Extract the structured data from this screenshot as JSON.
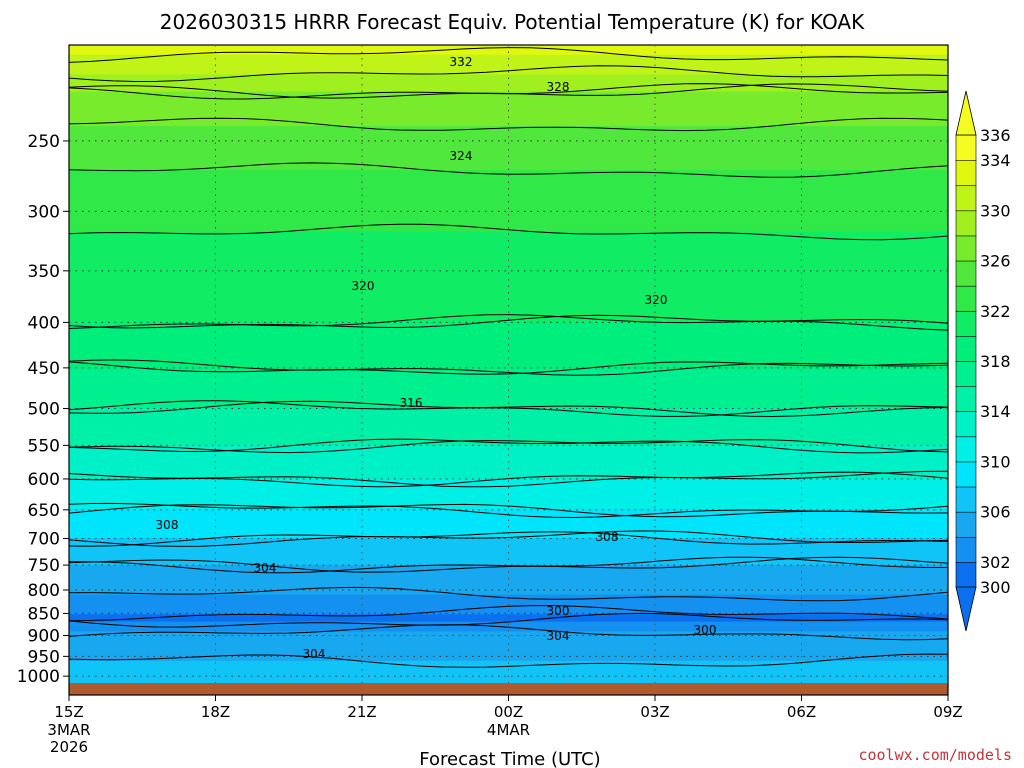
{
  "chart_data": {
    "type": "filled_contour",
    "title": "2026030315 HRRR Forecast Equiv. Potential Temperature (K) for KOAK",
    "xlabel": "Forecast Time (UTC)",
    "y_ticks": [
      250,
      300,
      350,
      400,
      450,
      500,
      550,
      600,
      650,
      700,
      750,
      800,
      850,
      900,
      950,
      1000
    ],
    "y_axis": "log pressure, 1000 at bottom",
    "x_ticks": [
      {
        "label": "15Z",
        "sub": [
          "3MAR",
          "2026"
        ]
      },
      {
        "label": "18Z",
        "sub": []
      },
      {
        "label": "21Z",
        "sub": []
      },
      {
        "label": "00Z",
        "sub": [
          "4MAR"
        ]
      },
      {
        "label": "03Z",
        "sub": []
      },
      {
        "label": "06Z",
        "sub": []
      },
      {
        "label": "09Z",
        "sub": []
      }
    ],
    "colorbar": {
      "levels": [
        300,
        302,
        304,
        306,
        308,
        310,
        312,
        314,
        316,
        318,
        320,
        322,
        324,
        326,
        328,
        330,
        332,
        334,
        336
      ],
      "labels": [
        "300",
        "302",
        "306",
        "310",
        "314",
        "318",
        "322",
        "326",
        "330",
        "334",
        "336"
      ],
      "colors": [
        "#0a70f0",
        "#1490f0",
        "#18a8f0",
        "#10c4f8",
        "#00e4fc",
        "#00f0e8",
        "#00f0c8",
        "#00f0a8",
        "#00f090",
        "#00ee7c",
        "#10ec64",
        "#30e848",
        "#50e83c",
        "#78ec2c",
        "#a0f020",
        "#c0f418",
        "#e0f810",
        "#f4fc20"
      ]
    },
    "contour_labels": [
      "332",
      "328",
      "324",
      "320",
      "320",
      "316",
      "308",
      "308",
      "304",
      "300",
      "300",
      "304",
      "304"
    ],
    "legend": "colorbar-right",
    "grid": true,
    "ground_color": "#b05a30"
  },
  "credit": "coolwx.com/models"
}
